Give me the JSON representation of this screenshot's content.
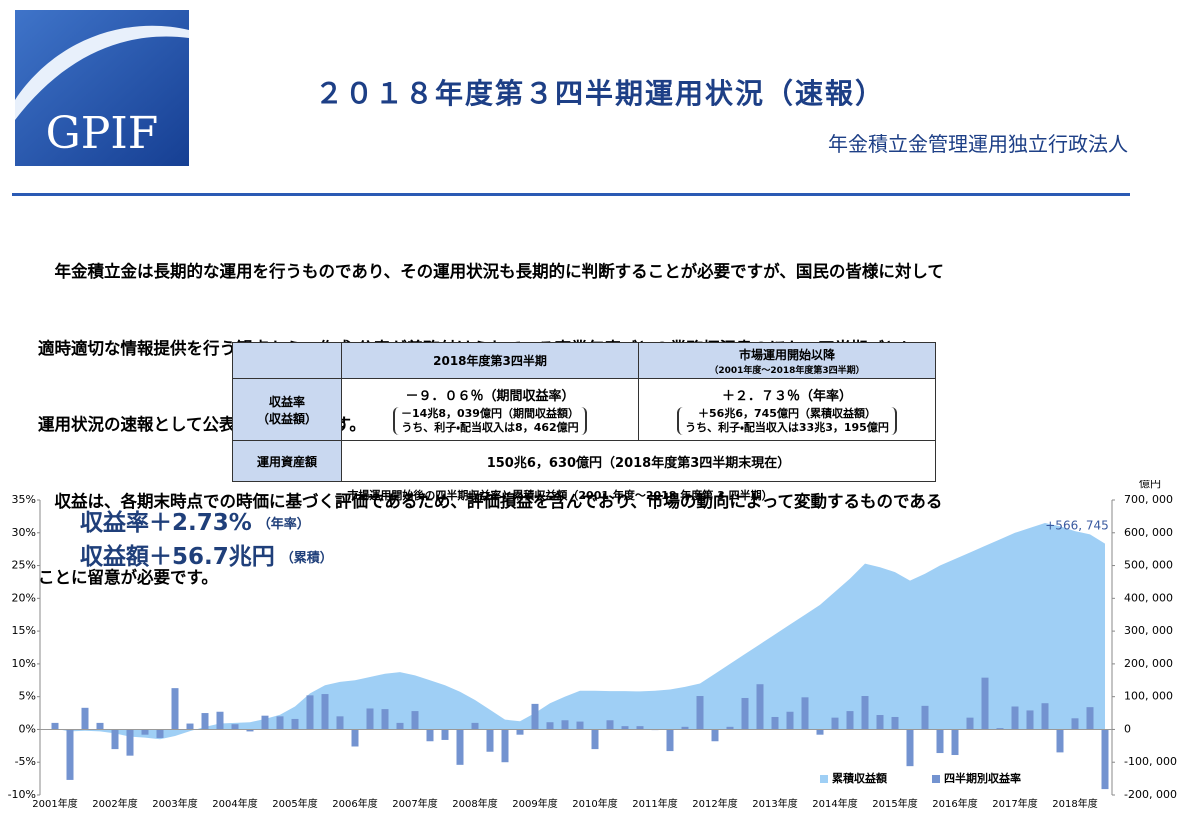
{
  "logo": {
    "text": "GPIF"
  },
  "header": {
    "title": "２０１８年度第３四半期運用状況（速報）",
    "subtitle": "年金積立金管理運用独立行政法人"
  },
  "body": {
    "lines": [
      "　年金積立金は長期的な運用を行うものであり、その運用状況も長期的に判断することが必要ですが、国民の皆様に対して",
      "適時適切な情報提供を行う観点から、作成・公表が義務付けられている事業年度ごとの業務概況書のほか、四半期ごとに",
      "運用状況の速報として公表を行うものです。",
      "　収益は、各期末時点での時価に基づく評価であるため、評価損益を含んでおり、市場の動向によって変動するものである",
      "ことに留意が必要です。"
    ]
  },
  "table": {
    "header": [
      "2018年度第3四半期",
      "市場運用開始以降",
      "（2001年度～2018年度第3四半期）"
    ],
    "row1": {
      "label": [
        "収益率",
        "（収益額）"
      ],
      "col1": [
        "－９．０６％（期間収益率）",
        "－14兆8，039億円（期間収益額）",
        "うち、利子・配当収入は8，462億円"
      ],
      "col2": [
        "＋２．７３％（年率）",
        "＋56兆6，745億円（累積収益額）",
        "うち、利子・配当収入は33兆3，195億円"
      ]
    },
    "row2": {
      "label": "運用資産額",
      "value": "150兆6，630億円（2018年度第3四半期末現在）"
    }
  },
  "chart_data": {
    "type": "bar",
    "title": "市場運用開始後の四半期収益率と累積収益額（2001 年度～2018 年度第 3 四半期）",
    "annotations": [
      {
        "main": "収益率＋2.73%",
        "note": "（年率）"
      },
      {
        "main": "収益額＋56.7兆円",
        "note": "（累積）"
      }
    ],
    "y2_unit": "億円",
    "categories": [
      "2001年度",
      null,
      null,
      null,
      "2002年度",
      null,
      null,
      null,
      "2003年度",
      null,
      null,
      null,
      "2004年度",
      null,
      null,
      null,
      "2005年度",
      null,
      null,
      null,
      "2006年度",
      null,
      null,
      null,
      "2007年度",
      null,
      null,
      null,
      "2008年度",
      null,
      null,
      null,
      "2009年度",
      null,
      null,
      null,
      "2010年度",
      null,
      null,
      null,
      "2011年度",
      null,
      null,
      null,
      "2012年度",
      null,
      null,
      null,
      "2013年度",
      null,
      null,
      null,
      "2014年度",
      null,
      null,
      null,
      "2015年度",
      null,
      null,
      null,
      "2016年度",
      null,
      null,
      null,
      "2017年度",
      null,
      null,
      null,
      "2018年度",
      null,
      null
    ],
    "series": [
      {
        "name": "累積収益額",
        "type": "area",
        "axis": "y2",
        "color": "#9fcff5",
        "values": [
          2000,
          -6000,
          -4000,
          -6000,
          -12000,
          -22000,
          -25000,
          -30000,
          -20000,
          -5000,
          8000,
          18000,
          20000,
          22000,
          32000,
          45000,
          70000,
          110000,
          135000,
          145000,
          150000,
          160000,
          170000,
          175000,
          165000,
          150000,
          135000,
          115000,
          90000,
          60000,
          30000,
          25000,
          50000,
          80000,
          100000,
          118000,
          118000,
          117000,
          117000,
          116000,
          118000,
          122000,
          130000,
          140000,
          170000,
          200000,
          230000,
          260000,
          290000,
          320000,
          350000,
          380000,
          420000,
          460000,
          506000,
          495000,
          480000,
          454000,
          475000,
          500000,
          520000,
          540000,
          560000,
          580000,
          600000,
          615000,
          630000,
          620000,
          605000,
          595000,
          566745
        ],
        "value_labels": [
          null,
          null,
          null,
          null,
          null,
          null,
          null,
          null,
          null,
          null,
          null,
          null,
          null,
          null,
          null,
          null,
          null,
          null,
          null,
          null,
          null,
          null,
          null,
          null,
          null,
          null,
          null,
          null,
          null,
          null,
          null,
          null,
          null,
          null,
          null,
          null,
          null,
          null,
          null,
          null,
          null,
          null,
          null,
          null,
          null,
          null,
          null,
          null,
          null,
          null,
          null,
          null,
          null,
          null,
          null,
          null,
          null,
          null,
          null,
          null,
          null,
          null,
          null,
          null,
          null,
          null,
          null,
          null,
          null,
          null,
          "+566, 745"
        ]
      },
      {
        "name": "四半期別収益率",
        "type": "bar",
        "color": "#7393d0",
        "values": [
          1.0,
          -7.7,
          3.3,
          1.0,
          -3.0,
          -4.0,
          -0.8,
          -1.3,
          6.3,
          0.9,
          2.5,
          2.7,
          0.8,
          -0.3,
          2.1,
          2.0,
          1.6,
          5.2,
          5.4,
          2.0,
          -2.6,
          3.2,
          3.1,
          1.0,
          2.8,
          -1.8,
          -1.6,
          -5.4,
          1.0,
          -3.4,
          -5.0,
          -0.8,
          3.9,
          1.1,
          1.4,
          1.2,
          -3.0,
          1.4,
          0.5,
          0.5,
          -0.1,
          -3.3,
          0.4,
          5.1,
          -1.8,
          0.4,
          4.8,
          6.9,
          1.9,
          2.7,
          4.9,
          -0.8,
          1.8,
          2.8,
          5.1,
          2.2,
          1.9,
          -5.6,
          3.6,
          -3.6,
          -3.9,
          1.8,
          7.9,
          0.2,
          3.5,
          2.9,
          4.0,
          -3.5,
          1.7,
          3.4,
          -9.1
        ]
      }
    ],
    "ylim": [
      -10,
      35
    ],
    "yticks": [
      {
        "value": -10,
        "label": "-10%"
      },
      {
        "value": -5,
        "label": "-5%"
      },
      {
        "value": 0,
        "label": "0%"
      },
      {
        "value": 5,
        "label": "5%"
      },
      {
        "value": 10,
        "label": "10%"
      },
      {
        "value": 15,
        "label": "15%"
      },
      {
        "value": 20,
        "label": "20%"
      },
      {
        "value": 25,
        "label": "25%"
      },
      {
        "value": 30,
        "label": "30%"
      },
      {
        "value": 35,
        "label": "35%"
      }
    ],
    "y2lim": [
      -200000,
      700000
    ],
    "y2ticks": [
      {
        "value": -200000,
        "label": "-200, 000"
      },
      {
        "value": -100000,
        "label": "-100, 000"
      },
      0,
      {
        "value": 100000,
        "label": "100, 000"
      },
      {
        "value": 200000,
        "label": "200, 000"
      },
      {
        "value": 300000,
        "label": "300, 000"
      },
      {
        "value": 400000,
        "label": "400, 000"
      },
      {
        "value": 500000,
        "label": "500, 000"
      },
      {
        "value": 600000,
        "label": "600, 000"
      },
      {
        "value": 700000,
        "label": "700, 000"
      }
    ],
    "legend": "lower right",
    "grid": false
  }
}
